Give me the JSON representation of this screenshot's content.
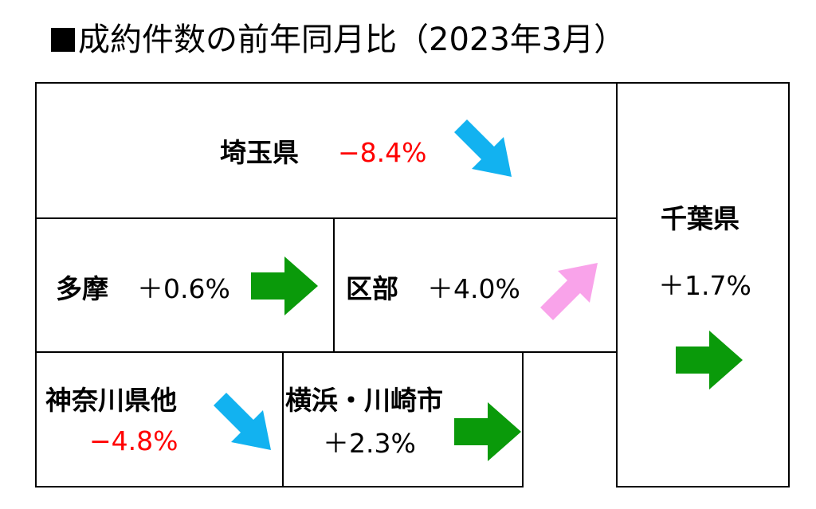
{
  "title": "成約件数の前年同月比（2023年3月）",
  "colors": {
    "decrease": "#ff0000",
    "increase": "#000000",
    "arrow_down": "#12b2f0",
    "arrow_flat": "#0a9a0a",
    "arrow_up": "#f9a3ea",
    "border": "#000000"
  },
  "regions": [
    {
      "name": "埼玉県",
      "change": "−8.4%",
      "trend": "down-right-arrow"
    },
    {
      "name": "千葉県",
      "change": "＋1.7%",
      "trend": "right-arrow"
    },
    {
      "name": "多摩",
      "change": "＋0.6%",
      "trend": "right-arrow"
    },
    {
      "name": "区部",
      "change": "＋4.0%",
      "trend": "up-right-arrow"
    },
    {
      "name": "神奈川県他",
      "change": "−4.8%",
      "trend": "down-right-arrow"
    },
    {
      "name": "横浜・川崎市",
      "change": "＋2.3%",
      "trend": "right-arrow"
    }
  ]
}
